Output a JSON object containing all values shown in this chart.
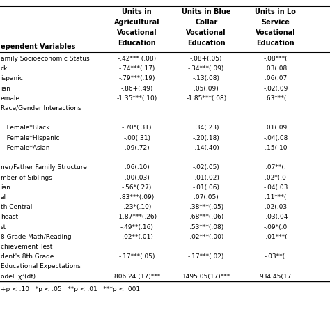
{
  "col0_header": "ependent Variables",
  "col1_header": "Units in\nAgricultural\nVocational\nEducation",
  "col2_header": "Units in Blue\nCollar\nVocational\nEducation",
  "col3_header": "Units in Lo\nService\nVocational\nEducation",
  "rows": [
    [
      "amily Socioeconomic Status",
      "-.42*** (.08)",
      "-.08+(.05)",
      "-.08***("
    ],
    [
      "ck",
      "-.74***(.17)",
      "-.34***(.09)",
      ".03(.08"
    ],
    [
      "ispanic",
      "-.79***(.19)",
      "-.13(.08)",
      ".06(.07"
    ],
    [
      "ian",
      "-.86+(.49)",
      ".05(.09)",
      "-.02(.09"
    ],
    [
      "emale",
      "-1.35***(.10)",
      "-1.85***(.08)",
      ".63***("
    ],
    [
      "Race/Gender Interactions",
      "",
      "",
      ""
    ],
    [
      "",
      "",
      "",
      ""
    ],
    [
      "   Female*Black",
      "-.70*(.31)",
      ".34(.23)",
      ".01(.09"
    ],
    [
      "   Female*Hispanic",
      "-.00(.31)",
      "-.20(.18)",
      "-.04(.08"
    ],
    [
      "   Female*Asian",
      ".09(.72)",
      "-.14(.40)",
      "-.15(.10"
    ],
    [
      "",
      "",
      "",
      ""
    ],
    [
      "ner/Father Family Structure",
      ".06(.10)",
      "-.02(.05)",
      ".07**(."
    ],
    [
      "mber of Siblings",
      ".00(.03)",
      "-.01(.02)",
      ".02*(.0"
    ],
    [
      "ian",
      "-.56*(.27)",
      "-.01(.06)",
      "-.04(.03"
    ],
    [
      "al",
      ".83***(.09)",
      ".07(.05)",
      ".11***("
    ],
    [
      "th Central",
      "-.23*(.10)",
      ".38***(.05)",
      ".02(.03"
    ],
    [
      "heast",
      "-1.87***(.26)",
      ".68***(.06)",
      "-.03(.04"
    ],
    [
      "st",
      "-.49**(.16)",
      ".53***(.08)",
      "-.09*(.0"
    ],
    [
      "8 Grade Math/Reading",
      "-.02**(.01)",
      "-.02***(.00)",
      "-.01***("
    ],
    [
      "chievement Test",
      "",
      "",
      ""
    ],
    [
      "dent's 8th Grade",
      "-.17***(.05)",
      "-.17***(.02)",
      "-.03**(."
    ],
    [
      "Educational Expectations",
      "",
      "",
      ""
    ],
    [
      "odel  χ²(df)",
      "806.24 (17)***",
      "1495.05(17)***",
      "934.45(17"
    ]
  ],
  "footer": "+p < .10   *p < .05   **p < .01   ***p < .001",
  "bg_color": "#ffffff",
  "font_size": 6.5,
  "header_font_size": 7.0
}
